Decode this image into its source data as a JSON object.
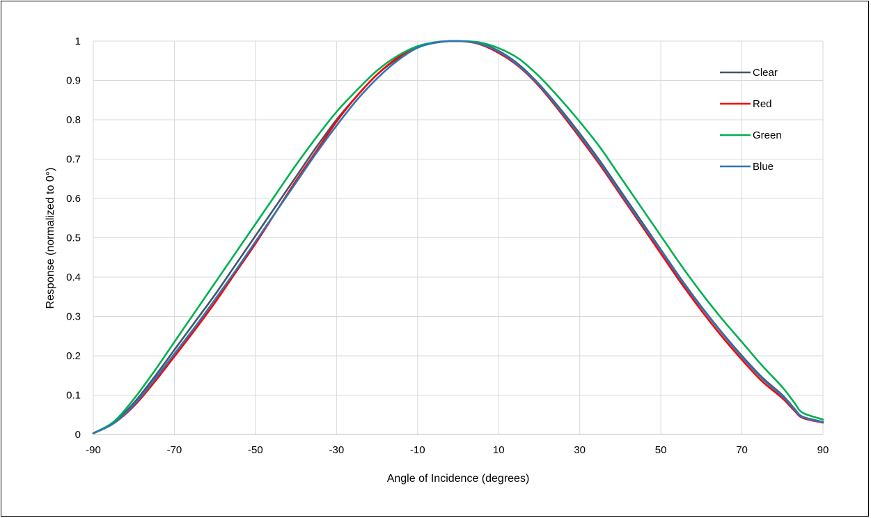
{
  "chart_data": {
    "type": "line",
    "title": "",
    "xlabel": "Angle of Incidence (degrees)",
    "ylabel": "Response (normalized to 0°)",
    "xlim": [
      -90,
      90
    ],
    "ylim": [
      0,
      1
    ],
    "xticks": [
      -90,
      -70,
      -50,
      -30,
      -10,
      10,
      30,
      50,
      70,
      90
    ],
    "yticks": [
      0,
      0.1,
      0.2,
      0.3,
      0.4,
      0.5,
      0.6,
      0.7,
      0.8,
      0.9,
      1
    ],
    "grid": true,
    "legend_position": "top-right",
    "series": [
      {
        "name": "Clear",
        "color": "#44546a",
        "x": [
          -90,
          -85,
          -80,
          -75,
          -70,
          -65,
          -60,
          -55,
          -50,
          -45,
          -40,
          -35,
          -30,
          -25,
          -20,
          -15,
          -10,
          -5,
          0,
          5,
          10,
          15,
          20,
          25,
          30,
          35,
          40,
          45,
          50,
          55,
          60,
          65,
          70,
          75,
          80,
          83,
          85,
          90
        ],
        "y": [
          0.003,
          0.03,
          0.08,
          0.145,
          0.215,
          0.285,
          0.355,
          0.43,
          0.505,
          0.58,
          0.655,
          0.73,
          0.8,
          0.86,
          0.915,
          0.955,
          0.985,
          0.997,
          1.0,
          0.995,
          0.975,
          0.94,
          0.89,
          0.83,
          0.765,
          0.695,
          0.62,
          0.545,
          0.47,
          0.395,
          0.325,
          0.26,
          0.2,
          0.145,
          0.1,
          0.065,
          0.045,
          0.032
        ]
      },
      {
        "name": "Red",
        "color": "#ff0000",
        "x": [
          -90,
          -85,
          -80,
          -75,
          -70,
          -65,
          -60,
          -55,
          -50,
          -45,
          -40,
          -35,
          -30,
          -25,
          -20,
          -15,
          -10,
          -5,
          0,
          5,
          10,
          15,
          20,
          25,
          30,
          35,
          40,
          45,
          50,
          55,
          60,
          65,
          70,
          75,
          80,
          83,
          85,
          90
        ],
        "y": [
          0.003,
          0.028,
          0.072,
          0.132,
          0.198,
          0.265,
          0.335,
          0.41,
          0.485,
          0.565,
          0.645,
          0.72,
          0.795,
          0.86,
          0.915,
          0.957,
          0.985,
          0.997,
          1.0,
          0.993,
          0.97,
          0.935,
          0.885,
          0.822,
          0.755,
          0.685,
          0.61,
          0.535,
          0.46,
          0.385,
          0.315,
          0.25,
          0.19,
          0.135,
          0.092,
          0.06,
          0.042,
          0.03
        ]
      },
      {
        "name": "Green",
        "color": "#00b050",
        "x": [
          -90,
          -85,
          -80,
          -75,
          -70,
          -65,
          -60,
          -55,
          -50,
          -45,
          -40,
          -35,
          -30,
          -25,
          -20,
          -15,
          -10,
          -5,
          0,
          5,
          10,
          15,
          20,
          25,
          30,
          35,
          40,
          45,
          50,
          55,
          60,
          65,
          70,
          75,
          80,
          83,
          85,
          90
        ],
        "y": [
          0.003,
          0.032,
          0.09,
          0.16,
          0.235,
          0.31,
          0.385,
          0.46,
          0.535,
          0.61,
          0.685,
          0.755,
          0.82,
          0.875,
          0.925,
          0.962,
          0.987,
          0.998,
          1.0,
          0.997,
          0.982,
          0.955,
          0.91,
          0.855,
          0.795,
          0.73,
          0.655,
          0.58,
          0.505,
          0.43,
          0.36,
          0.295,
          0.235,
          0.175,
          0.12,
          0.08,
          0.055,
          0.038
        ]
      },
      {
        "name": "Blue",
        "color": "#2e75b6",
        "x": [
          -90,
          -85,
          -80,
          -75,
          -70,
          -65,
          -60,
          -55,
          -50,
          -45,
          -40,
          -35,
          -30,
          -25,
          -20,
          -15,
          -10,
          -5,
          0,
          5,
          10,
          15,
          20,
          25,
          30,
          35,
          40,
          45,
          50,
          55,
          60,
          65,
          70,
          75,
          80,
          83,
          85,
          90
        ],
        "y": [
          0.003,
          0.028,
          0.075,
          0.138,
          0.205,
          0.272,
          0.343,
          0.415,
          0.49,
          0.565,
          0.64,
          0.715,
          0.785,
          0.85,
          0.905,
          0.95,
          0.983,
          0.997,
          1.0,
          0.994,
          0.973,
          0.937,
          0.888,
          0.826,
          0.76,
          0.69,
          0.615,
          0.54,
          0.468,
          0.392,
          0.323,
          0.258,
          0.197,
          0.142,
          0.097,
          0.063,
          0.044,
          0.031
        ]
      }
    ]
  }
}
